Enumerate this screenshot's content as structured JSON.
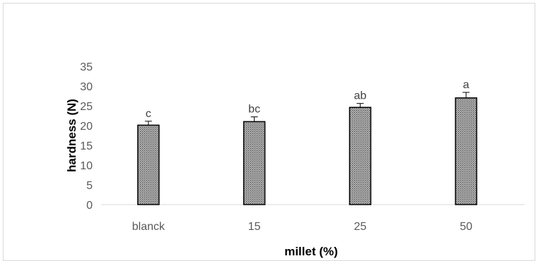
{
  "chart_data": {
    "type": "bar",
    "title": "",
    "xlabel": "millet (%)",
    "ylabel": "hardness (N)",
    "categories": [
      "blanck",
      "15",
      "25",
      "50"
    ],
    "values": [
      20.1,
      21.0,
      24.6,
      27.0
    ],
    "errors": [
      1.0,
      1.2,
      1.0,
      1.4
    ],
    "data_labels": [
      "c",
      "bc",
      "ab",
      "a"
    ],
    "ylim": [
      0,
      35
    ],
    "yticks": [
      0,
      5,
      10,
      15,
      20,
      25,
      30,
      35
    ],
    "grid": false,
    "legend": "none",
    "colors": {
      "bar_fill": "#a6a6a6",
      "bar_pattern": "#404040",
      "bar_edge": "#000000",
      "axis": "#d9d9d9",
      "frame": "#d9d9d9"
    }
  }
}
